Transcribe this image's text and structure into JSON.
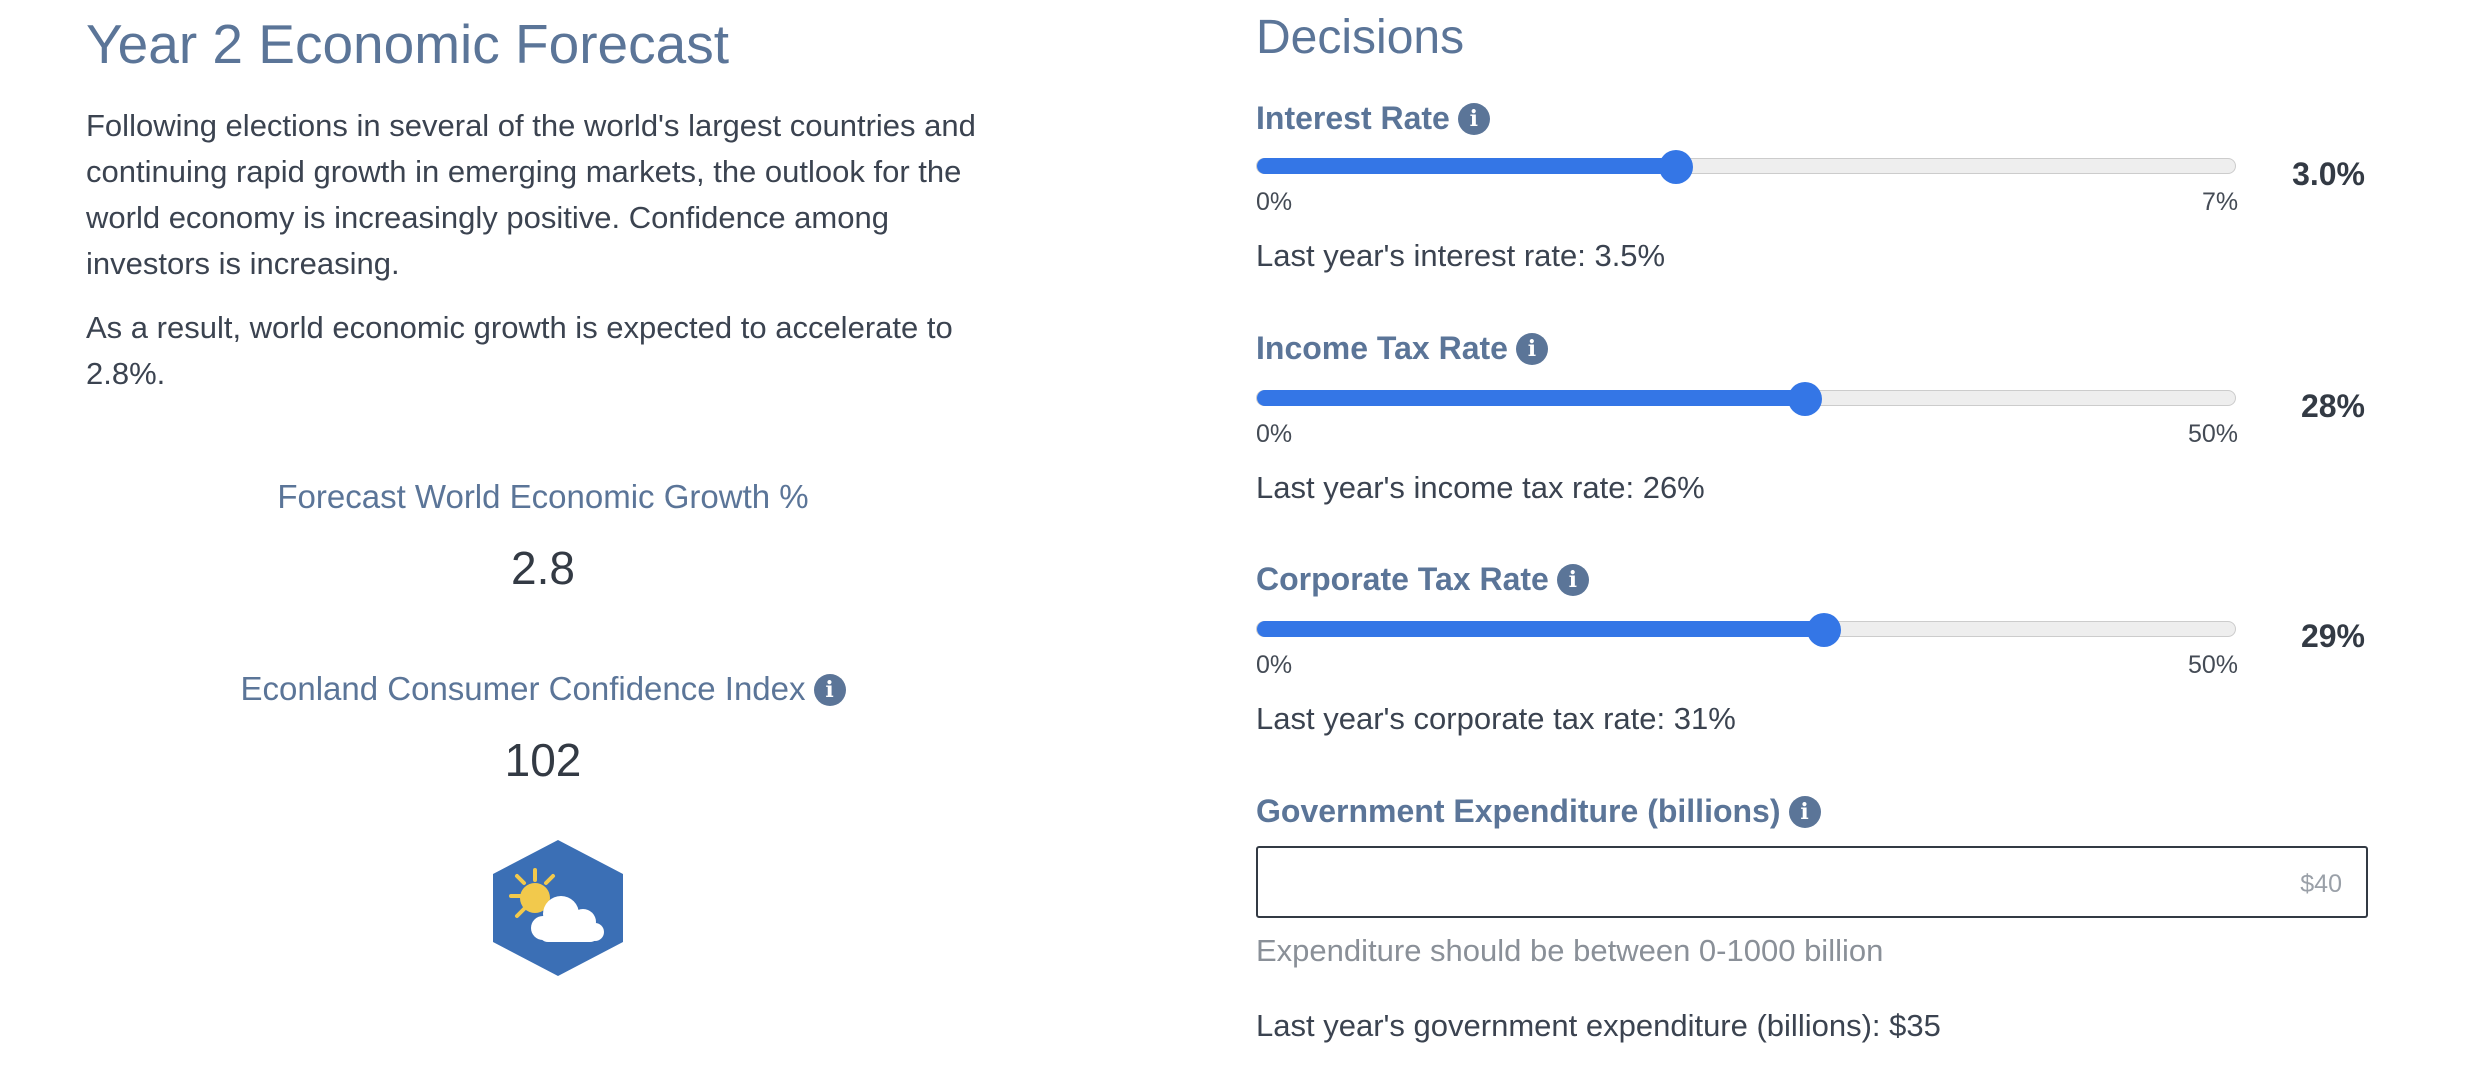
{
  "forecast": {
    "title": "Year 2 Economic Forecast",
    "paragraph1": "Following elections in several of the world's largest countries and continuing rapid growth in emerging markets, the outlook for the world economy is increasingly positive. Confidence among investors is increasing.",
    "paragraph2": "As a result, world economic growth is expected to accelerate to 2.8%.",
    "growth_label": "Forecast World Economic Growth %",
    "growth_value": "2.8",
    "confidence_label": "Econland Consumer Confidence Index",
    "confidence_value": "102",
    "weather_icon": "partly-sunny-icon"
  },
  "decisions": {
    "title": "Decisions",
    "interest_rate": {
      "label": "Interest Rate",
      "min": "0%",
      "max": "7%",
      "value_display": "3.0%",
      "value": 3.0,
      "range": [
        0,
        7
      ],
      "last_year": "Last year's interest rate: 3.5%"
    },
    "income_tax": {
      "label": "Income Tax Rate",
      "min": "0%",
      "max": "50%",
      "value_display": "28%",
      "value": 28,
      "range": [
        0,
        50
      ],
      "last_year": "Last year's income tax rate: 26%"
    },
    "corporate_tax": {
      "label": "Corporate Tax Rate",
      "min": "0%",
      "max": "50%",
      "value_display": "29%",
      "value": 29,
      "range": [
        0,
        50
      ],
      "last_year": "Last year's corporate tax rate: 31%"
    },
    "expenditure": {
      "label": "Government Expenditure (billions)",
      "placeholder": "$40",
      "hint": "Expenditure should be between 0-1000 billion",
      "last_year": "Last year's government expenditure (billions): $35"
    }
  },
  "colors": {
    "accent": "#3476e6",
    "heading": "#5b7598",
    "text": "#333a44",
    "weather_bg": "#3b6fb5",
    "sun": "#f2c94c"
  }
}
